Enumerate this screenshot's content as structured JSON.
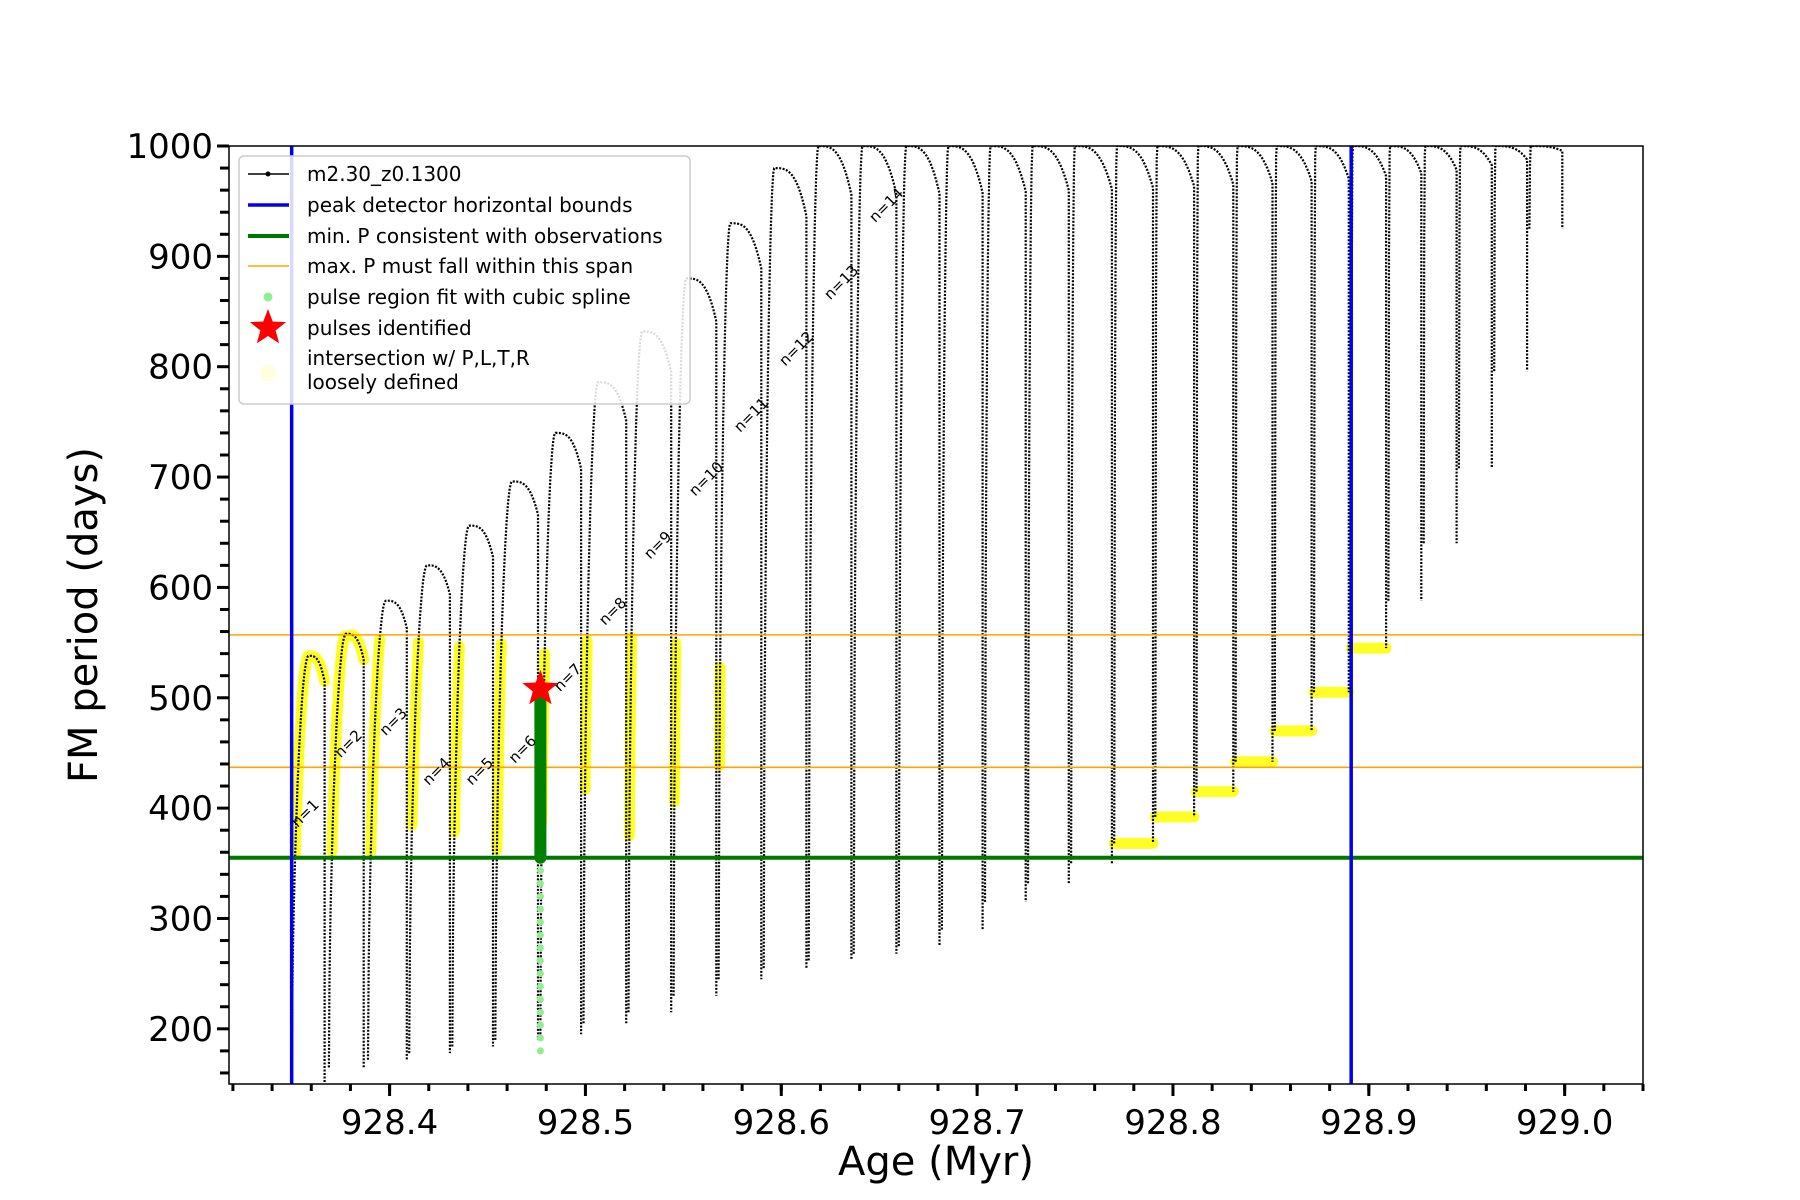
{
  "chart_data": {
    "type": "line",
    "xlabel": "Age (Myr)",
    "ylabel": "FM period (days)",
    "xlim": [
      928.318,
      929.04
    ],
    "ylim": [
      150,
      1000
    ],
    "xticks": [
      {
        "v": 928.4,
        "label": "928.4"
      },
      {
        "v": 928.5,
        "label": "928.5"
      },
      {
        "v": 928.6,
        "label": "928.6"
      },
      {
        "v": 928.7,
        "label": "928.7"
      },
      {
        "v": 928.8,
        "label": "928.8"
      },
      {
        "v": 928.9,
        "label": "928.9"
      },
      {
        "v": 929.0,
        "label": "929.0"
      }
    ],
    "yticks": [
      {
        "v": 200,
        "label": "200"
      },
      {
        "v": 300,
        "label": "300"
      },
      {
        "v": 400,
        "label": "400"
      },
      {
        "v": 500,
        "label": "500"
      },
      {
        "v": 600,
        "label": "600"
      },
      {
        "v": 700,
        "label": "700"
      },
      {
        "v": 800,
        "label": "800"
      },
      {
        "v": 900,
        "label": "900"
      },
      {
        "v": 1000,
        "label": "1000"
      }
    ],
    "grid": false,
    "legend_position": "top-left",
    "colors": {
      "track": "#000000",
      "bounds": "#0000ee",
      "minP": "#007700",
      "maxP": "#ffa500",
      "spline": "#90ee90",
      "splineStrong": "#008000",
      "star": "#ff0000",
      "intersection": "#ffff00",
      "loose": "#ffffe0"
    },
    "series": [
      {
        "name": "m2.30_z0.1300",
        "pulses": [
          {
            "x0": 928.35,
            "x1": 928.368,
            "trough": 150,
            "peak": 538
          },
          {
            "x0": 928.369,
            "x1": 928.388,
            "trough": 165,
            "peak": 558
          },
          {
            "x0": 928.389,
            "x1": 928.41,
            "trough": 172,
            "peak": 588
          },
          {
            "x0": 928.41,
            "x1": 928.432,
            "trough": 178,
            "peak": 620
          },
          {
            "x0": 928.432,
            "x1": 928.454,
            "trough": 184,
            "peak": 656
          },
          {
            "x0": 928.454,
            "x1": 928.477,
            "trough": 190,
            "peak": 696
          },
          {
            "x0": 928.477,
            "x1": 928.499,
            "trough": 195,
            "peak": 740
          },
          {
            "x0": 928.499,
            "x1": 928.522,
            "trough": 205,
            "peak": 786
          },
          {
            "x0": 928.522,
            "x1": 928.545,
            "trough": 215,
            "peak": 832
          },
          {
            "x0": 928.545,
            "x1": 928.568,
            "trough": 230,
            "peak": 880
          },
          {
            "x0": 928.568,
            "x1": 928.591,
            "trough": 245,
            "peak": 930
          },
          {
            "x0": 928.591,
            "x1": 928.614,
            "trough": 255,
            "peak": 980
          },
          {
            "x0": 928.614,
            "x1": 928.637,
            "trough": 262,
            "peak": 1000
          },
          {
            "x0": 928.637,
            "x1": 928.66,
            "trough": 268,
            "peak": 1000
          },
          {
            "x0": 928.66,
            "x1": 928.682,
            "trough": 275,
            "peak": 1000
          },
          {
            "x0": 928.682,
            "x1": 928.704,
            "trough": 290,
            "peak": 1000
          },
          {
            "x0": 928.704,
            "x1": 928.726,
            "trough": 315,
            "peak": 1000
          },
          {
            "x0": 928.726,
            "x1": 928.748,
            "trough": 332,
            "peak": 1000
          },
          {
            "x0": 928.748,
            "x1": 928.77,
            "trough": 350,
            "peak": 1000
          },
          {
            "x0": 928.77,
            "x1": 928.791,
            "trough": 368,
            "peak": 1000
          },
          {
            "x0": 928.791,
            "x1": 928.812,
            "trough": 392,
            "peak": 1000
          },
          {
            "x0": 928.812,
            "x1": 928.832,
            "trough": 415,
            "peak": 1000
          },
          {
            "x0": 928.832,
            "x1": 928.852,
            "trough": 442,
            "peak": 1000
          },
          {
            "x0": 928.852,
            "x1": 928.872,
            "trough": 470,
            "peak": 1000
          },
          {
            "x0": 928.872,
            "x1": 928.891,
            "trough": 505,
            "peak": 1000
          },
          {
            "x0": 928.891,
            "x1": 928.91,
            "trough": 545,
            "peak": 1000
          },
          {
            "x0": 928.91,
            "x1": 928.928,
            "trough": 588,
            "peak": 1000
          },
          {
            "x0": 928.928,
            "x1": 928.946,
            "trough": 640,
            "peak": 1000
          },
          {
            "x0": 928.946,
            "x1": 928.964,
            "trough": 708,
            "peak": 1000
          },
          {
            "x0": 928.964,
            "x1": 928.982,
            "trough": 796,
            "peak": 1000
          },
          {
            "x0": 928.982,
            "x1": 929.0,
            "trough": 925,
            "peak": 1000
          }
        ]
      },
      {
        "name": "peak detector horizontal bounds",
        "x": [
          928.35,
          928.891
        ]
      },
      {
        "name": "min. P consistent with observations",
        "y": 355
      },
      {
        "name": "max. P must fall within this span",
        "y": [
          437,
          557
        ]
      },
      {
        "name": "pulse region fit with cubic spline",
        "x": 928.477,
        "y_range": [
          180,
          498
        ]
      },
      {
        "name": "pulses identified",
        "points": [
          {
            "x": 928.477,
            "y": 508
          }
        ]
      },
      {
        "name": "intersection w/ P,L,T,R\nloosely defined"
      }
    ],
    "annotations": [
      {
        "text": "n=1",
        "x": 928.353,
        "y": 382
      },
      {
        "text": "n=2",
        "x": 928.375,
        "y": 445
      },
      {
        "text": "n=3",
        "x": 928.398,
        "y": 465
      },
      {
        "text": "n=4",
        "x": 928.42,
        "y": 420
      },
      {
        "text": "n=5",
        "x": 928.442,
        "y": 420
      },
      {
        "text": "n=6",
        "x": 928.464,
        "y": 440
      },
      {
        "text": "n=7",
        "x": 928.487,
        "y": 505
      },
      {
        "text": "n=8",
        "x": 928.51,
        "y": 565
      },
      {
        "text": "n=9",
        "x": 928.533,
        "y": 625
      },
      {
        "text": "n=10",
        "x": 928.556,
        "y": 682
      },
      {
        "text": "n=11",
        "x": 928.579,
        "y": 740
      },
      {
        "text": "n=12",
        "x": 928.602,
        "y": 800
      },
      {
        "text": "n=13",
        "x": 928.625,
        "y": 860
      },
      {
        "text": "n=14",
        "x": 928.648,
        "y": 930
      }
    ]
  }
}
